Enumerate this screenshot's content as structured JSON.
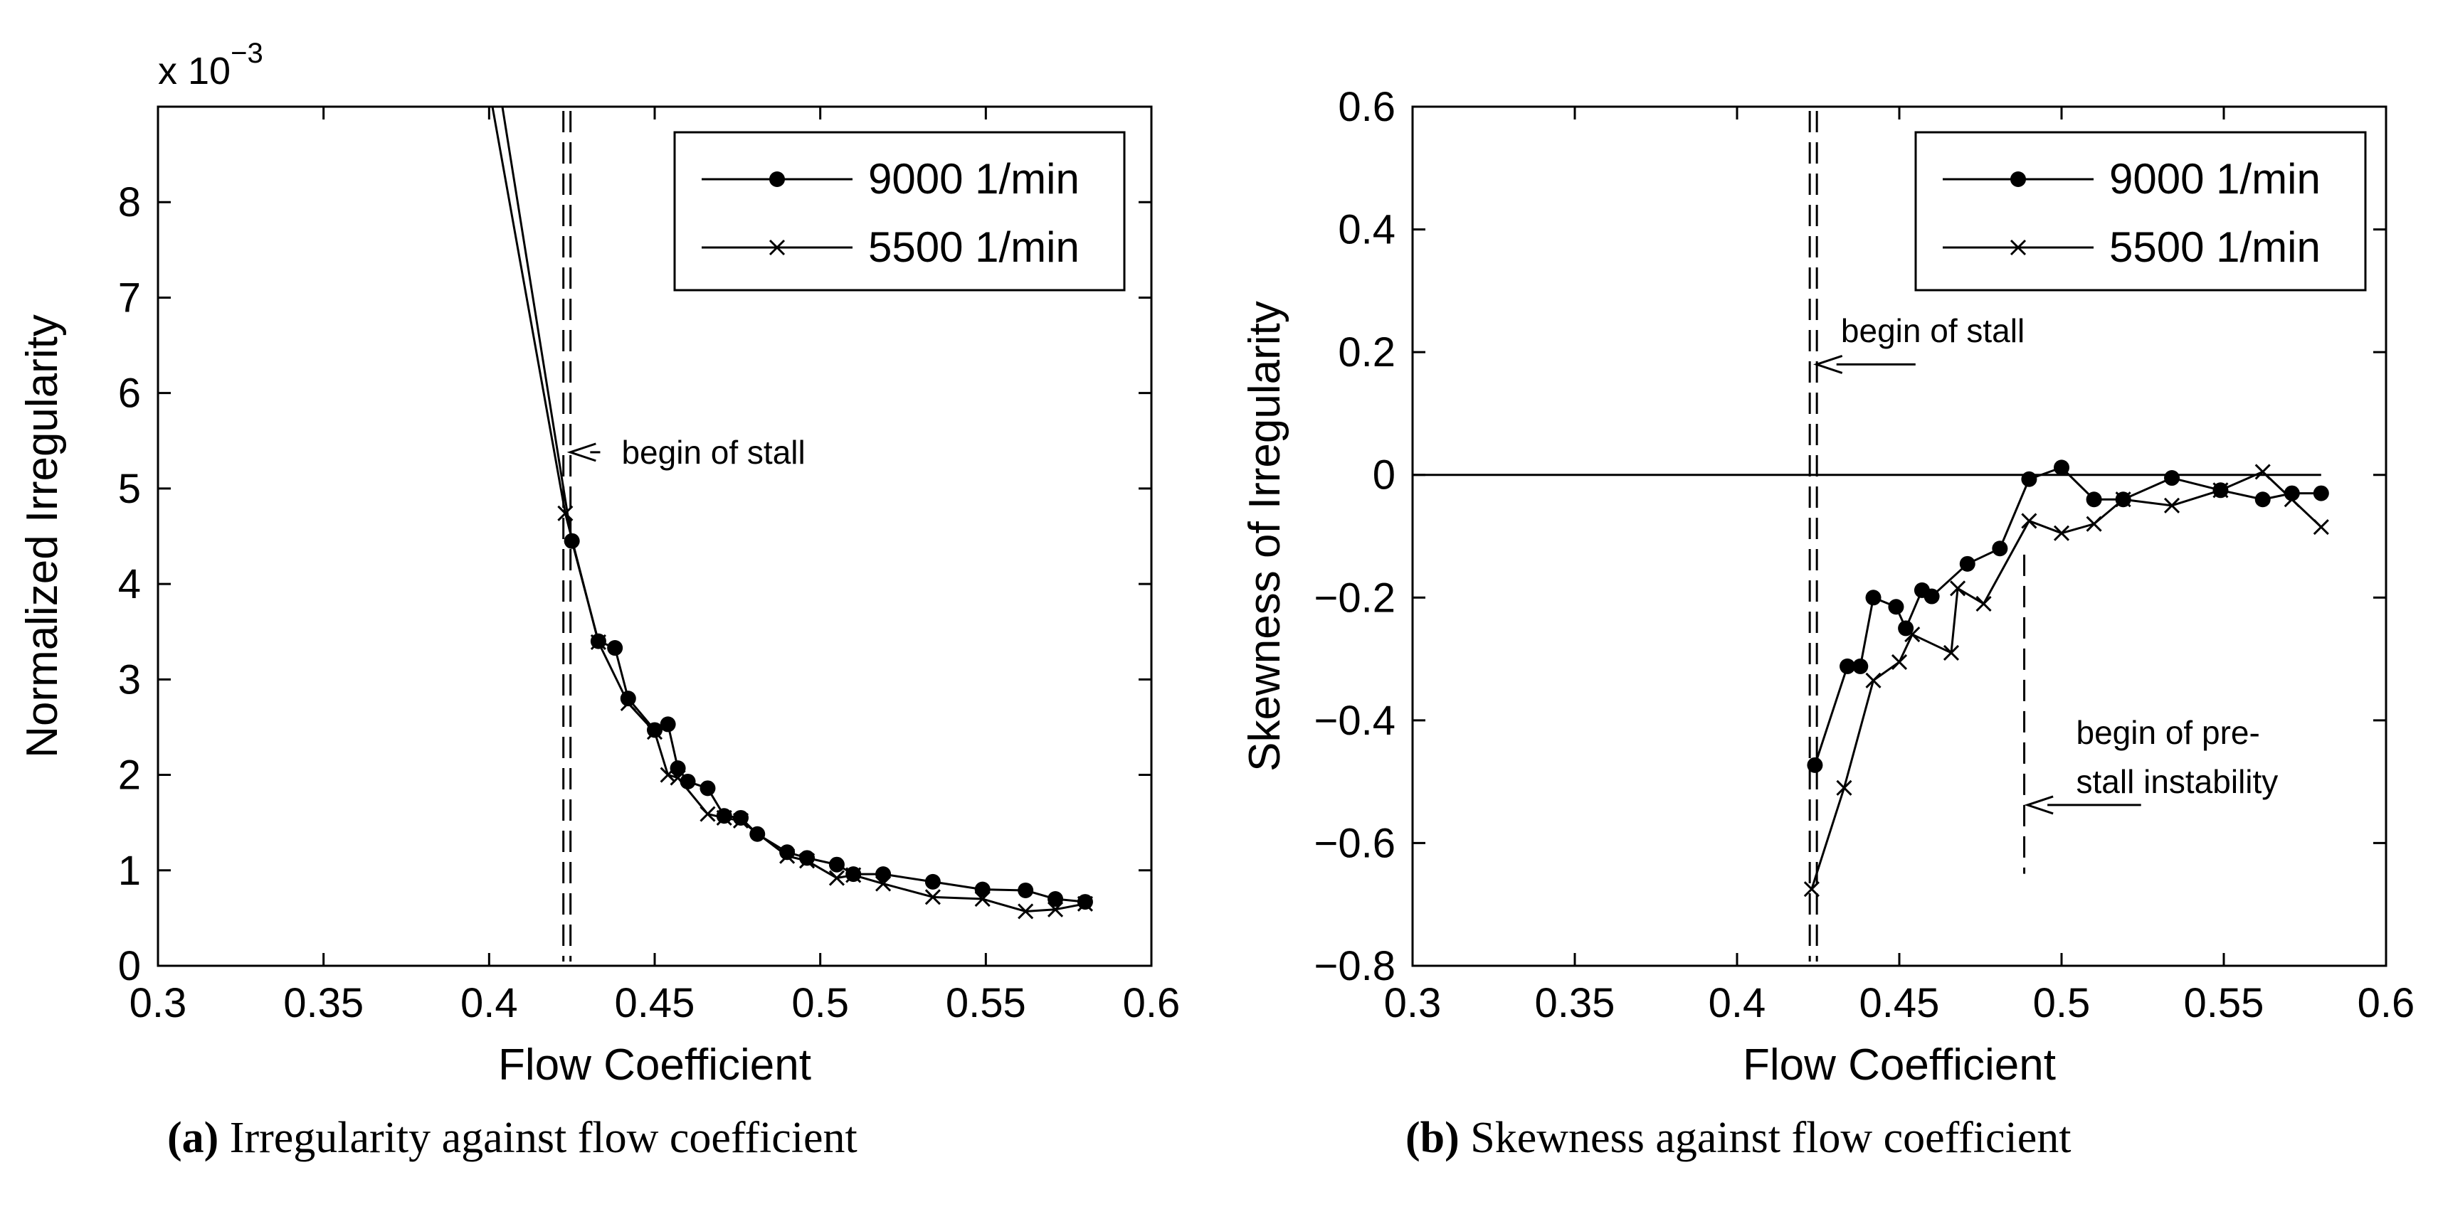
{
  "chart_data": [
    {
      "type": "line",
      "panel_label": "(a)",
      "caption": "Irregularity against flow coefficient",
      "title": "",
      "xlabel": "Flow Coefficient",
      "ylabel": "Normalized Irregularity",
      "scale_note": {
        "base": "x 10",
        "exponent": "−3"
      },
      "xlim": [
        0.3,
        0.6
      ],
      "ylim": [
        0,
        9
      ],
      "xticks": [
        0.3,
        0.35,
        0.4,
        0.45,
        0.5,
        0.55,
        0.6
      ],
      "xtick_labels": [
        "0.3",
        "0.35",
        "0.4",
        "0.45",
        "0.5",
        "0.55",
        "0.6"
      ],
      "yticks": [
        0,
        1,
        2,
        3,
        4,
        5,
        6,
        7,
        8
      ],
      "ytick_labels": [
        "0",
        "1",
        "2",
        "3",
        "4",
        "5",
        "6",
        "7",
        "8"
      ],
      "legend": {
        "position": "top-right",
        "entries": [
          "9000 1/min",
          "5500 1/min"
        ]
      },
      "series": [
        {
          "name": "9000 1/min",
          "marker": "dot",
          "x": [
            0.425,
            0.433,
            0.438,
            0.442,
            0.45,
            0.454,
            0.457,
            0.46,
            0.466,
            0.471,
            0.476,
            0.481,
            0.49,
            0.496,
            0.505,
            0.51,
            0.519,
            0.534,
            0.549,
            0.562,
            0.571,
            0.58
          ],
          "y": [
            4.45,
            3.4,
            3.33,
            2.8,
            2.47,
            2.53,
            2.07,
            1.93,
            1.86,
            1.57,
            1.55,
            1.38,
            1.19,
            1.13,
            1.06,
            0.96,
            0.96,
            0.88,
            0.8,
            0.79,
            0.7,
            0.67
          ],
          "extension": [
            [
              0.404,
              9.0
            ],
            [
              0.425,
              4.45
            ]
          ]
        },
        {
          "name": "5500 1/min",
          "marker": "x",
          "x": [
            0.423,
            0.433,
            0.442,
            0.45,
            0.454,
            0.457,
            0.466,
            0.471,
            0.476,
            0.49,
            0.496,
            0.505,
            0.51,
            0.519,
            0.534,
            0.549,
            0.562,
            0.571,
            0.58
          ],
          "y": [
            4.74,
            3.39,
            2.75,
            2.45,
            2.0,
            1.97,
            1.59,
            1.55,
            1.52,
            1.15,
            1.1,
            0.92,
            0.95,
            0.86,
            0.72,
            0.7,
            0.57,
            0.59,
            0.65
          ],
          "extension": [
            [
              0.401,
              9.0
            ],
            [
              0.423,
              4.74
            ]
          ]
        }
      ],
      "vlines": [
        {
          "x": 0.4235,
          "style": "double-dashed"
        }
      ],
      "annotations": [
        {
          "text": "begin of stall",
          "text_at": [
            0.44,
            5.38
          ],
          "arrow_to": [
            0.4245,
            5.38
          ]
        }
      ]
    },
    {
      "type": "line",
      "panel_label": "(b)",
      "caption": "Skewness against flow coefficient",
      "title": "",
      "xlabel": "Flow Coefficient",
      "ylabel": "Skewness of Irregularity",
      "xlim": [
        0.3,
        0.6
      ],
      "ylim": [
        -0.8,
        0.6
      ],
      "xticks": [
        0.3,
        0.35,
        0.4,
        0.45,
        0.5,
        0.55,
        0.6
      ],
      "xtick_labels": [
        "0.3",
        "0.35",
        "0.4",
        "0.45",
        "0.5",
        "0.55",
        "0.6"
      ],
      "yticks": [
        -0.8,
        -0.6,
        -0.4,
        -0.2,
        0,
        0.2,
        0.4,
        0.6
      ],
      "ytick_labels": [
        "−0.8",
        "−0.6",
        "−0.4",
        "−0.2",
        "0",
        "0.2",
        "0.4",
        "0.6"
      ],
      "legend": {
        "position": "top-right",
        "entries": [
          "9000 1/min",
          "5500 1/min"
        ]
      },
      "series": [
        {
          "name": "9000 1/min",
          "marker": "dot",
          "x": [
            0.424,
            0.434,
            0.438,
            0.442,
            0.449,
            0.452,
            0.457,
            0.46,
            0.471,
            0.481,
            0.49,
            0.5,
            0.51,
            0.519,
            0.534,
            0.549,
            0.562,
            0.571,
            0.58
          ],
          "y": [
            -0.473,
            -0.312,
            -0.312,
            -0.2,
            -0.215,
            -0.25,
            -0.188,
            -0.198,
            -0.145,
            -0.12,
            -0.007,
            0.012,
            -0.04,
            -0.04,
            -0.005,
            -0.025,
            -0.04,
            -0.03,
            -0.03
          ],
          "extension": []
        },
        {
          "name": "5500 1/min",
          "marker": "x",
          "x": [
            0.423,
            0.433,
            0.442,
            0.45,
            0.454,
            0.466,
            0.468,
            0.476,
            0.49,
            0.5,
            0.51,
            0.519,
            0.534,
            0.549,
            0.562,
            0.571,
            0.58
          ],
          "y": [
            -0.675,
            -0.51,
            -0.335,
            -0.305,
            -0.26,
            -0.29,
            -0.185,
            -0.21,
            -0.075,
            -0.095,
            -0.08,
            -0.04,
            -0.05,
            -0.025,
            0.005,
            -0.04,
            -0.085
          ],
          "extension": []
        }
      ],
      "hlines": [
        {
          "y": 0,
          "x_range": [
            0.3,
            0.58
          ]
        }
      ],
      "vlines": [
        {
          "x": 0.4235,
          "style": "double-dashed"
        },
        {
          "x": 0.4885,
          "style": "dashed",
          "y_range": [
            -0.65,
            -0.13
          ]
        }
      ],
      "annotations": [
        {
          "text": "begin of stall",
          "text_at": [
            0.432,
            0.235
          ],
          "arrow_to": [
            0.4245,
            0.18
          ]
        },
        {
          "text": "begin of pre-",
          "text_at": [
            0.5045,
            -0.42
          ],
          "arrow_to": null
        },
        {
          "text": "stall instability",
          "text_at": [
            0.5045,
            -0.5
          ],
          "arrow_to": [
            0.4895,
            -0.538
          ]
        }
      ]
    }
  ]
}
